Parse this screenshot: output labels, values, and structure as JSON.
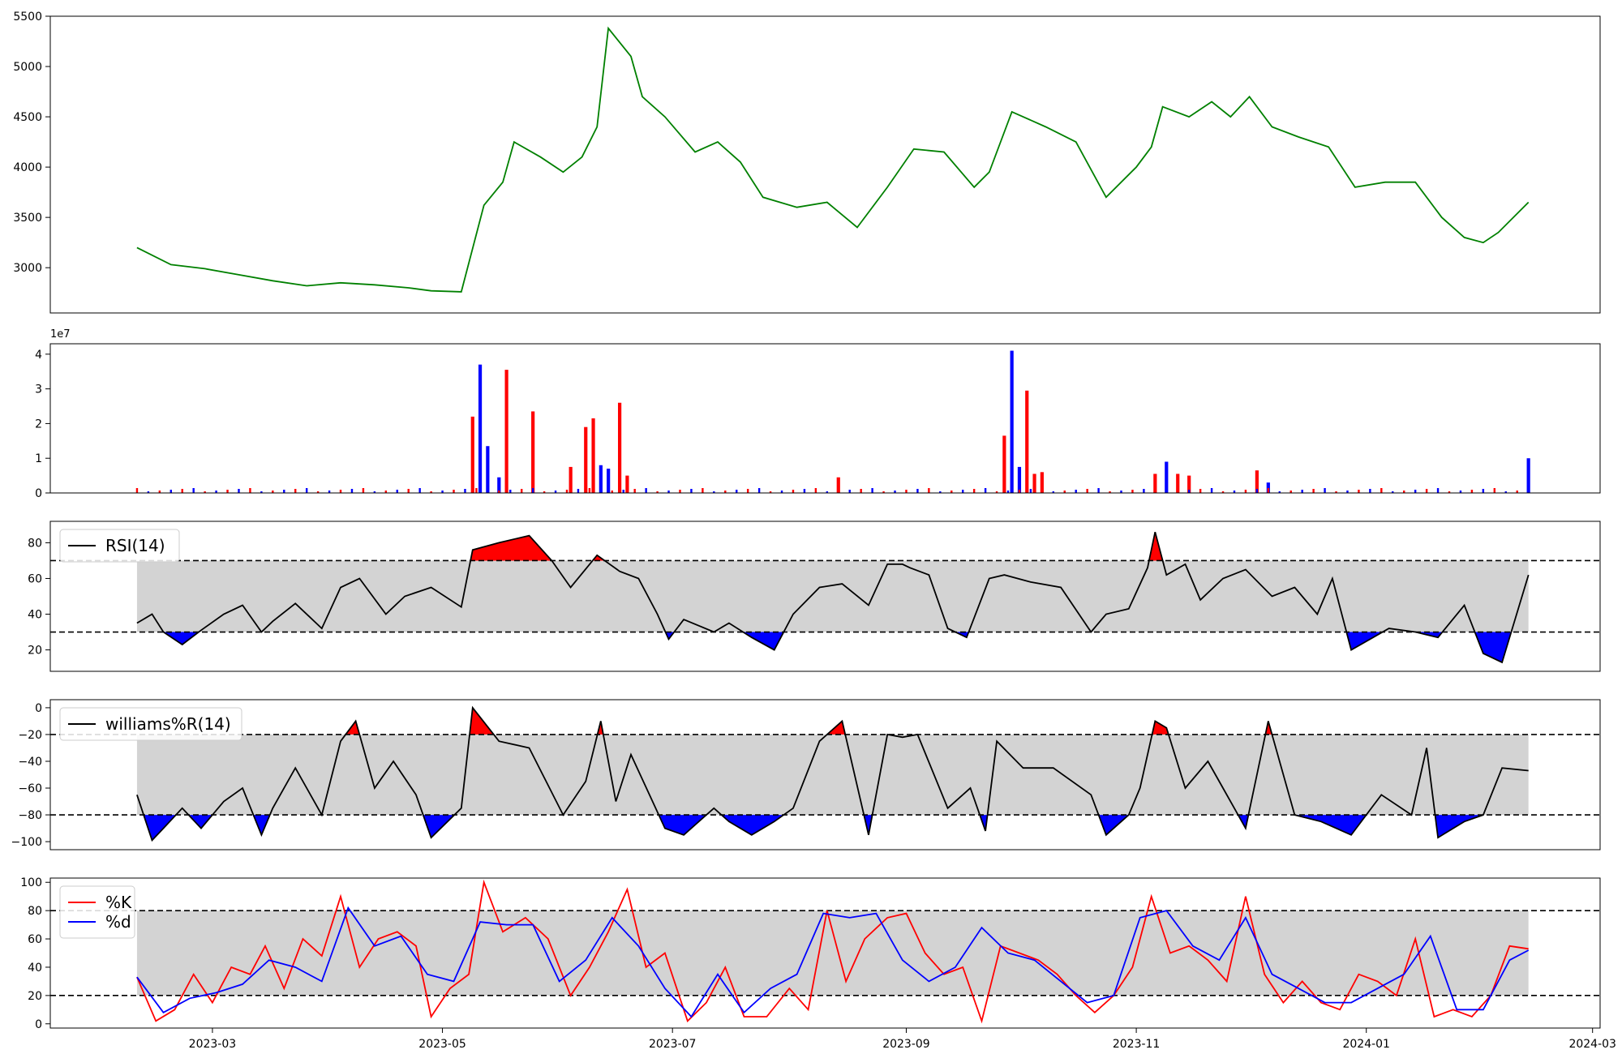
{
  "colors": {
    "price": "#008000",
    "up": "#ff0000",
    "down": "#0000ff",
    "band": "#d3d3d3",
    "line": "#000000"
  },
  "chart_data": [
    {
      "type": "line",
      "title": "",
      "x_range": [
        "2023-01-17",
        "2024-03-03"
      ],
      "ylim": [
        2550,
        5500
      ],
      "y_ticks": [
        3000,
        3500,
        4000,
        4500,
        5000,
        5500
      ],
      "series": [
        {
          "x": [
            "2023-02-09",
            "2023-02-18",
            "2023-02-27",
            "2023-03-08",
            "2023-03-17",
            "2023-03-26",
            "2023-04-04",
            "2023-04-13",
            "2023-04-22",
            "2023-04-28",
            "2023-05-06",
            "2023-05-12",
            "2023-05-17",
            "2023-05-20",
            "2023-05-27",
            "2023-06-02",
            "2023-06-07",
            "2023-06-11",
            "2023-06-14",
            "2023-06-20",
            "2023-06-23",
            "2023-06-29",
            "2023-07-07",
            "2023-07-13",
            "2023-07-19",
            "2023-07-25",
            "2023-08-03",
            "2023-08-11",
            "2023-08-19",
            "2023-08-27",
            "2023-09-03",
            "2023-09-11",
            "2023-09-19",
            "2023-09-23",
            "2023-09-29",
            "2023-10-08",
            "2023-10-16",
            "2023-10-24",
            "2023-11-01",
            "2023-11-05",
            "2023-11-08",
            "2023-11-15",
            "2023-11-21",
            "2023-11-26",
            "2023-12-01",
            "2023-12-07",
            "2023-12-14",
            "2023-12-22",
            "2023-12-29",
            "2024-01-06",
            "2024-01-14",
            "2024-01-21",
            "2024-01-27",
            "2024-02-01",
            "2024-02-05",
            "2024-02-13"
          ],
          "y": [
            3200,
            3030,
            2990,
            2930,
            2870,
            2820,
            2850,
            2830,
            2800,
            2770,
            2760,
            3620,
            3850,
            4250,
            4100,
            3950,
            4100,
            4400,
            5380,
            5100,
            4700,
            4500,
            4150,
            4250,
            4050,
            3700,
            3600,
            3650,
            3400,
            3800,
            4180,
            4150,
            3800,
            3950,
            4550,
            4400,
            4250,
            3700,
            4000,
            4200,
            4600,
            4500,
            4650,
            4500,
            4700,
            4400,
            4300,
            4200,
            3800,
            3850,
            3850,
            3500,
            3300,
            3250,
            3350,
            3650
          ]
        }
      ]
    },
    {
      "type": "bar",
      "offset_label": "1e7",
      "ylim": [
        0,
        4.3
      ],
      "y_ticks": [
        0,
        1,
        2,
        3,
        4
      ],
      "x": [
        "2023-05-09",
        "2023-05-11",
        "2023-05-13",
        "2023-05-16",
        "2023-05-18",
        "2023-05-25",
        "2023-06-04",
        "2023-06-08",
        "2023-06-10",
        "2023-06-12",
        "2023-06-14",
        "2023-06-17",
        "2023-06-19",
        "2023-08-14",
        "2023-09-27",
        "2023-09-29",
        "2023-10-01",
        "2023-10-03",
        "2023-10-05",
        "2023-10-07",
        "2023-11-06",
        "2023-11-09",
        "2023-11-12",
        "2023-11-15",
        "2023-12-03",
        "2023-12-06",
        "2024-02-13"
      ],
      "values": [
        2.2,
        3.7,
        1.35,
        0.45,
        3.55,
        2.35,
        0.75,
        1.9,
        2.15,
        0.8,
        0.7,
        2.6,
        0.5,
        0.45,
        1.65,
        4.1,
        0.75,
        2.95,
        0.55,
        0.6,
        0.55,
        0.9,
        0.55,
        0.5,
        0.65,
        0.3,
        1.0
      ],
      "direction": [
        "up",
        "down",
        "down",
        "down",
        "up",
        "up",
        "up",
        "up",
        "up",
        "down",
        "down",
        "up",
        "up",
        "up",
        "up",
        "down",
        "down",
        "up",
        "up",
        "up",
        "up",
        "down",
        "up",
        "up",
        "up",
        "down",
        "down"
      ]
    },
    {
      "type": "line",
      "legend": [
        "RSI(14)"
      ],
      "legend_position": "upper-left",
      "ylim": [
        8,
        92
      ],
      "y_ticks": [
        20,
        40,
        60,
        80
      ],
      "thresholds": [
        30,
        70
      ],
      "series": [
        {
          "name": "RSI(14)",
          "x": [
            "2023-02-09",
            "2023-02-13",
            "2023-02-16",
            "2023-02-21",
            "2023-02-26",
            "2023-03-04",
            "2023-03-09",
            "2023-03-14",
            "2023-03-17",
            "2023-03-23",
            "2023-03-30",
            "2023-04-04",
            "2023-04-09",
            "2023-04-16",
            "2023-04-21",
            "2023-04-28",
            "2023-05-06",
            "2023-05-09",
            "2023-05-16",
            "2023-05-24",
            "2023-05-30",
            "2023-06-04",
            "2023-06-11",
            "2023-06-17",
            "2023-06-22",
            "2023-06-27",
            "2023-06-30",
            "2023-07-04",
            "2023-07-12",
            "2023-07-16",
            "2023-07-22",
            "2023-07-28",
            "2023-08-02",
            "2023-08-09",
            "2023-08-15",
            "2023-08-22",
            "2023-08-27",
            "2023-08-31",
            "2023-09-02",
            "2023-09-07",
            "2023-09-12",
            "2023-09-17",
            "2023-09-23",
            "2023-09-27",
            "2023-10-04",
            "2023-10-12",
            "2023-10-20",
            "2023-10-24",
            "2023-10-30",
            "2023-11-04",
            "2023-11-06",
            "2023-11-09",
            "2023-11-14",
            "2023-11-18",
            "2023-11-24",
            "2023-11-30",
            "2023-12-07",
            "2023-12-13",
            "2023-12-19",
            "2023-12-23",
            "2023-12-28",
            "2024-01-07",
            "2024-01-14",
            "2024-01-20",
            "2024-01-27",
            "2024-02-01",
            "2024-02-06",
            "2024-02-13"
          ],
          "y": [
            35,
            40,
            30,
            23,
            31,
            40,
            45,
            30,
            36,
            46,
            32,
            55,
            60,
            40,
            50,
            55,
            44,
            76,
            80,
            84,
            70,
            55,
            73,
            64,
            60,
            40,
            26,
            37,
            30,
            35,
            27,
            20,
            40,
            55,
            57,
            45,
            68,
            68,
            66,
            62,
            32,
            27,
            60,
            62,
            58,
            55,
            30,
            40,
            43,
            66,
            86,
            62,
            68,
            48,
            60,
            65,
            50,
            55,
            40,
            60,
            20,
            32,
            30,
            27,
            45,
            18,
            13,
            62
          ]
        }
      ]
    },
    {
      "type": "line",
      "legend": [
        "williams%R(14)"
      ],
      "legend_position": "upper-left",
      "ylim": [
        -106,
        6
      ],
      "y_ticks": [
        -100,
        -80,
        -60,
        -40,
        -20,
        0
      ],
      "thresholds": [
        -20,
        -80
      ],
      "series": [
        {
          "name": "williams%R(14)",
          "x": [
            "2023-02-09",
            "2023-02-13",
            "2023-02-16",
            "2023-02-21",
            "2023-02-26",
            "2023-03-04",
            "2023-03-09",
            "2023-03-14",
            "2023-03-17",
            "2023-03-23",
            "2023-03-30",
            "2023-04-04",
            "2023-04-08",
            "2023-04-13",
            "2023-04-18",
            "2023-04-24",
            "2023-04-28",
            "2023-05-06",
            "2023-05-09",
            "2023-05-16",
            "2023-05-24",
            "2023-06-02",
            "2023-06-08",
            "2023-06-12",
            "2023-06-16",
            "2023-06-20",
            "2023-06-29",
            "2023-07-04",
            "2023-07-12",
            "2023-07-16",
            "2023-07-22",
            "2023-07-28",
            "2023-08-02",
            "2023-08-09",
            "2023-08-15",
            "2023-08-22",
            "2023-08-27",
            "2023-08-31",
            "2023-09-04",
            "2023-09-12",
            "2023-09-18",
            "2023-09-22",
            "2023-09-25",
            "2023-10-02",
            "2023-10-10",
            "2023-10-20",
            "2023-10-24",
            "2023-10-30",
            "2023-11-02",
            "2023-11-06",
            "2023-11-09",
            "2023-11-14",
            "2023-11-20",
            "2023-11-24",
            "2023-11-30",
            "2023-12-06",
            "2023-12-13",
            "2023-12-20",
            "2023-12-28",
            "2024-01-05",
            "2024-01-13",
            "2024-01-17",
            "2024-01-20",
            "2024-01-27",
            "2024-02-01",
            "2024-02-06",
            "2024-02-13"
          ],
          "y": [
            -65,
            -99,
            -90,
            -75,
            -90,
            -70,
            -60,
            -95,
            -75,
            -45,
            -80,
            -25,
            -10,
            -60,
            -40,
            -65,
            -97,
            -75,
            0,
            -25,
            -30,
            -80,
            -55,
            -10,
            -70,
            -35,
            -90,
            -95,
            -75,
            -85,
            -95,
            -85,
            -75,
            -25,
            -10,
            -95,
            -20,
            -22,
            -20,
            -75,
            -60,
            -92,
            -25,
            -45,
            -45,
            -65,
            -95,
            -80,
            -60,
            -10,
            -15,
            -60,
            -40,
            -60,
            -90,
            -10,
            -80,
            -85,
            -95,
            -65,
            -80,
            -30,
            -97,
            -85,
            -80,
            -45,
            -47
          ]
        }
      ]
    },
    {
      "type": "line",
      "legend": [
        "%K",
        "%d"
      ],
      "legend_position": "upper-left",
      "ylim": [
        -3,
        103
      ],
      "y_ticks": [
        0,
        20,
        40,
        60,
        80,
        100
      ],
      "thresholds": [
        20,
        80
      ],
      "series": [
        {
          "name": "%K",
          "x": [
            "2023-02-09",
            "2023-02-14",
            "2023-02-19",
            "2023-02-24",
            "2023-03-01",
            "2023-03-06",
            "2023-03-11",
            "2023-03-15",
            "2023-03-20",
            "2023-03-25",
            "2023-03-30",
            "2023-04-04",
            "2023-04-09",
            "2023-04-14",
            "2023-04-19",
            "2023-04-24",
            "2023-04-28",
            "2023-05-03",
            "2023-05-08",
            "2023-05-12",
            "2023-05-17",
            "2023-05-23",
            "2023-05-29",
            "2023-06-04",
            "2023-06-09",
            "2023-06-14",
            "2023-06-19",
            "2023-06-24",
            "2023-06-29",
            "2023-07-05",
            "2023-07-10",
            "2023-07-15",
            "2023-07-20",
            "2023-07-26",
            "2023-08-01",
            "2023-08-06",
            "2023-08-11",
            "2023-08-16",
            "2023-08-21",
            "2023-08-27",
            "2023-09-01",
            "2023-09-06",
            "2023-09-11",
            "2023-09-16",
            "2023-09-21",
            "2023-09-26",
            "2023-10-01",
            "2023-10-06",
            "2023-10-11",
            "2023-10-16",
            "2023-10-21",
            "2023-10-26",
            "2023-10-31",
            "2023-11-05",
            "2023-11-10",
            "2023-11-15",
            "2023-11-20",
            "2023-11-25",
            "2023-11-30",
            "2023-12-05",
            "2023-12-10",
            "2023-12-15",
            "2023-12-20",
            "2023-12-25",
            "2023-12-30",
            "2024-01-04",
            "2024-01-09",
            "2024-01-14",
            "2024-01-19",
            "2024-01-24",
            "2024-01-29",
            "2024-02-03",
            "2024-02-08",
            "2024-02-13"
          ],
          "y": [
            33,
            2,
            10,
            35,
            15,
            40,
            35,
            55,
            25,
            60,
            48,
            90,
            40,
            60,
            65,
            55,
            5,
            25,
            35,
            100,
            65,
            75,
            60,
            20,
            40,
            65,
            95,
            40,
            50,
            2,
            15,
            40,
            5,
            5,
            25,
            10,
            80,
            30,
            60,
            75,
            78,
            50,
            35,
            40,
            2,
            55,
            50,
            45,
            35,
            20,
            8,
            20,
            40,
            90,
            50,
            55,
            45,
            30,
            90,
            35,
            15,
            30,
            15,
            10,
            35,
            30,
            20,
            60,
            5,
            10,
            5,
            20,
            55,
            53
          ]
        },
        {
          "name": "%d",
          "x": [
            "2023-02-09",
            "2023-02-16",
            "2023-02-23",
            "2023-03-02",
            "2023-03-09",
            "2023-03-16",
            "2023-03-23",
            "2023-03-30",
            "2023-04-06",
            "2023-04-13",
            "2023-04-20",
            "2023-04-27",
            "2023-05-04",
            "2023-05-11",
            "2023-05-18",
            "2023-05-25",
            "2023-06-01",
            "2023-06-08",
            "2023-06-15",
            "2023-06-22",
            "2023-06-29",
            "2023-07-06",
            "2023-07-13",
            "2023-07-20",
            "2023-07-27",
            "2023-08-03",
            "2023-08-10",
            "2023-08-17",
            "2023-08-24",
            "2023-08-31",
            "2023-09-07",
            "2023-09-14",
            "2023-09-21",
            "2023-09-28",
            "2023-10-05",
            "2023-10-12",
            "2023-10-19",
            "2023-10-26",
            "2023-11-02",
            "2023-11-09",
            "2023-11-16",
            "2023-11-23",
            "2023-11-30",
            "2023-12-07",
            "2023-12-14",
            "2023-12-21",
            "2023-12-28",
            "2024-01-04",
            "2024-01-11",
            "2024-01-18",
            "2024-01-25",
            "2024-02-01",
            "2024-02-08",
            "2024-02-13"
          ],
          "y": [
            33,
            8,
            18,
            22,
            28,
            45,
            40,
            30,
            82,
            55,
            62,
            35,
            30,
            72,
            70,
            70,
            30,
            45,
            75,
            55,
            25,
            5,
            35,
            8,
            25,
            35,
            78,
            75,
            78,
            45,
            30,
            40,
            68,
            50,
            45,
            30,
            15,
            20,
            75,
            80,
            55,
            45,
            75,
            35,
            25,
            15,
            15,
            25,
            35,
            62,
            10,
            10,
            45,
            52
          ]
        }
      ],
      "x_ticks": [
        "2023-03",
        "2023-05",
        "2023-07",
        "2023-09",
        "2023-11",
        "2024-01",
        "2024-03"
      ]
    }
  ]
}
